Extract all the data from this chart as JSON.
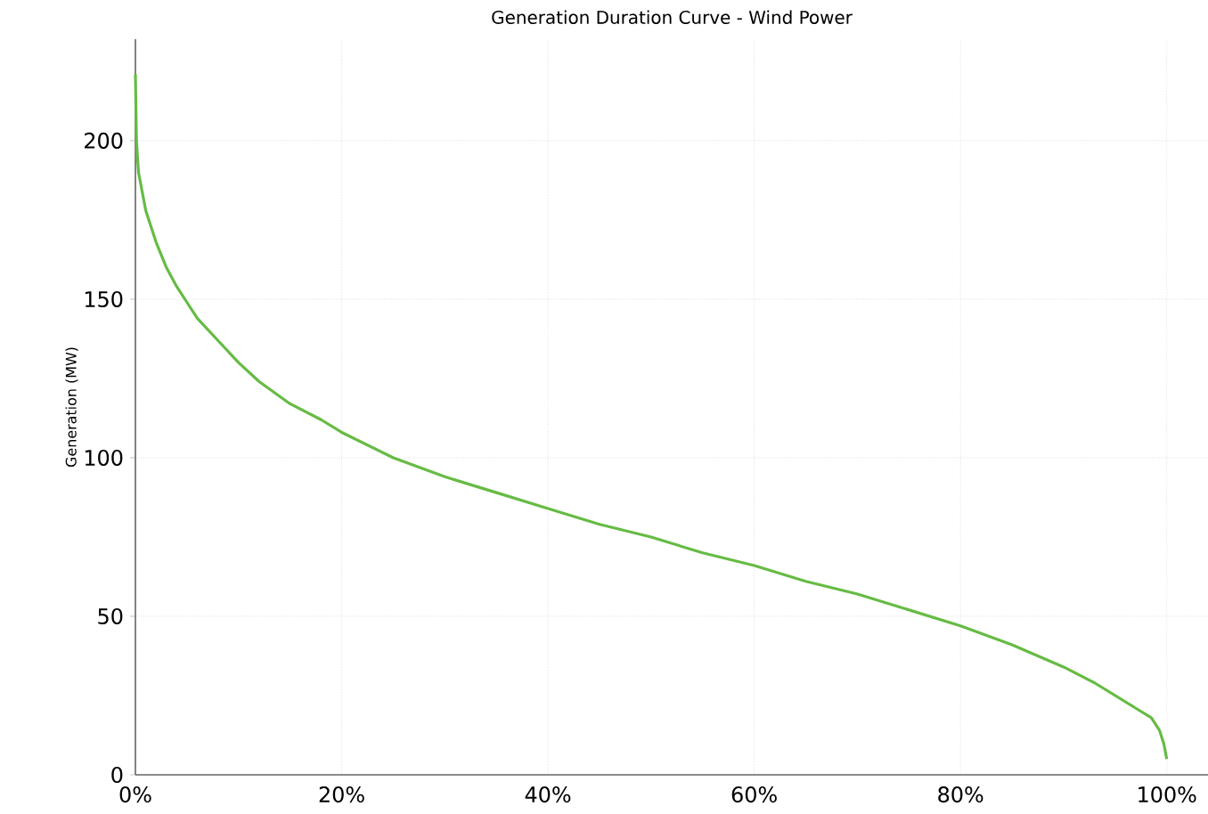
{
  "chart_data": {
    "type": "line",
    "title": "Generation Duration Curve - Wind Power",
    "ylabel": "Generation (MW)",
    "x": [
      0,
      0.1,
      0.3,
      1,
      2,
      3,
      4,
      5,
      6,
      8,
      10,
      12,
      15,
      18,
      20,
      25,
      30,
      35,
      40,
      45,
      50,
      55,
      60,
      65,
      70,
      75,
      80,
      85,
      90,
      93,
      95,
      97,
      98.5,
      99.3,
      99.7,
      100
    ],
    "values": [
      221,
      200,
      190,
      178,
      168,
      160,
      154,
      149,
      144,
      137,
      130,
      124,
      117,
      112,
      108,
      100,
      94,
      89,
      84,
      79,
      75,
      70,
      66,
      61,
      57,
      52,
      47,
      41,
      34,
      29,
      25,
      21,
      18,
      14,
      10,
      5
    ],
    "color": "#66bb44",
    "xlim": [
      0,
      104
    ],
    "ylim": [
      0,
      232
    ],
    "xticks": [
      {
        "value": 0,
        "label": "0%"
      },
      {
        "value": 20,
        "label": "20%"
      },
      {
        "value": 40,
        "label": "40%"
      },
      {
        "value": 60,
        "label": "60%"
      },
      {
        "value": 80,
        "label": "80%"
      },
      {
        "value": 100,
        "label": "100%"
      }
    ],
    "yticks": [
      0,
      50,
      100,
      150,
      200
    ],
    "grid": true,
    "marker": "none",
    "line_style": "solid"
  }
}
